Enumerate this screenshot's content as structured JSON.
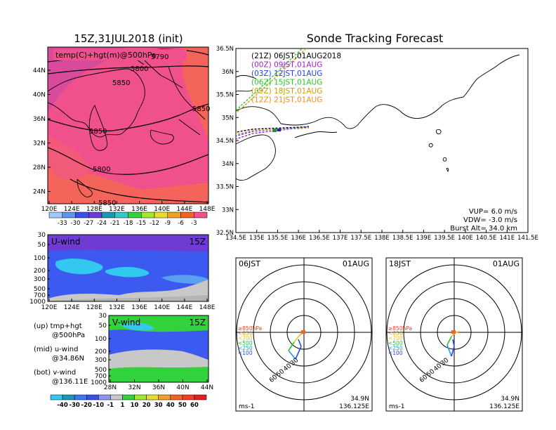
{
  "colors": {
    "temp_fill": "#f0508c",
    "temp_fill_dark": "#c83c8c",
    "temp_fill_warm": "#f5645a",
    "wind_blue": "#3c5af0",
    "wind_light": "#32c8f0",
    "wind_purple": "#6e3cd2",
    "wind_green": "#32d23c",
    "wind_gray": "#b4b4b4",
    "wind_lightgray": "#c8c8c8",
    "t21z": "#000000",
    "t00z": "#a020c8",
    "t03z": "#2040f0",
    "t06z": "#28c828",
    "t09z": "#c8a000",
    "t12z": "#f08c28"
  },
  "map_panel": {
    "title": "15Z,31JUL2018 (init)",
    "label": "temp(C)+hgt(m)@500hPa",
    "contour_labels": [
      "5790",
      "5800",
      "5850",
      "5850",
      "5850",
      "5800",
      "5850"
    ],
    "xticks": [
      "120E",
      "124E",
      "128E",
      "132E",
      "136E",
      "140E",
      "144E",
      "148E"
    ],
    "yticks": [
      "44N",
      "40N",
      "36N",
      "32N",
      "28N",
      "24N"
    ],
    "colorbar": [
      "-33",
      "-30",
      "-27",
      "-24",
      "-21",
      "-18",
      "-15",
      "-12",
      "-9",
      "-6",
      "-3"
    ]
  },
  "uwind_panel": {
    "label": "U-wind",
    "time": "15Z",
    "yticks": [
      "30",
      "50",
      "100",
      "200",
      "300",
      "500",
      "700",
      "1000"
    ],
    "xticks": [
      "120E",
      "124E",
      "128E",
      "132E",
      "136E",
      "140E",
      "144E",
      "148E"
    ]
  },
  "vwind_panel": {
    "label": "V-wind",
    "time": "15Z",
    "yticks": [
      "30",
      "50",
      "100",
      "200",
      "300",
      "500",
      "700",
      "1000"
    ],
    "xticks": [
      "28N",
      "32N",
      "36N",
      "40N",
      "44N"
    ]
  },
  "side_notes": {
    "up_1": "(up) tmp+hgt",
    "up_2": "@500hPa",
    "mid_1": "(mid) u-wind",
    "mid_2": "@34.86N",
    "bot_1": "(bot) v-wind",
    "bot_2": "@136.11E"
  },
  "wind_colorbar": [
    "-40",
    "-30",
    "-20",
    "-10",
    "-1",
    "1",
    "10",
    "20",
    "30",
    "40",
    "50",
    "60"
  ],
  "tracking": {
    "title": "Sonde Tracking Forecast",
    "legend": [
      {
        "label": "(21Z)  06JST,01AUG2018",
        "color": "#000000"
      },
      {
        "label": "(00Z)  09JST,01AUG",
        "color": "#a020c8"
      },
      {
        "label": "(03Z)  12JST,01AUG",
        "color": "#2040f0"
      },
      {
        "label": "(06Z)  15JST,01AUG",
        "color": "#28c828"
      },
      {
        "label": "(09Z)  18JST,01AUG",
        "color": "#c8a000"
      },
      {
        "label": "(12Z)  21JST,01AUG",
        "color": "#f08c28"
      }
    ],
    "xticks": [
      "134.5E",
      "135E",
      "135.5E",
      "136E",
      "136.5E",
      "137E",
      "137.5E",
      "138E",
      "138.5E",
      "139E",
      "139.5E",
      "140E",
      "140.5E",
      "141E",
      "141.5E"
    ],
    "yticks": [
      "36.5N",
      "36N",
      "35.5N",
      "35N",
      "34.5N",
      "34N",
      "33.5N",
      "33N",
      "32.5N"
    ],
    "vup": "VUP=  6.0  m/s",
    "vdw": "VDW= -3.0  m/s",
    "burst": "Burst Alt=  34.0  km"
  },
  "hodo_left": {
    "time": "06JST",
    "date": "01AUG",
    "levels": [
      "≥850hPa",
      "<850",
      "<700",
      "<500",
      "<250",
      "<100"
    ],
    "ring_labels": [
      "30",
      "40",
      "50",
      "60"
    ],
    "unit": "ms-1",
    "lat": "34.9N",
    "lon": "136.125E"
  },
  "hodo_right": {
    "time": "18JST",
    "date": "01AUG",
    "levels": [
      "≥850hPa",
      "<850",
      "<700",
      "<500",
      "<250",
      "<100"
    ],
    "ring_labels": [
      "30",
      "40",
      "50",
      "60"
    ],
    "unit": "ms-1",
    "lat": "34.9N",
    "lon": "136.125E"
  }
}
